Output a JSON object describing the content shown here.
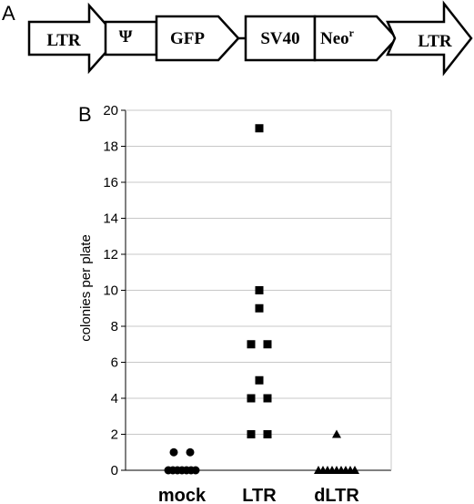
{
  "panel_a": {
    "letter": "A",
    "elements": [
      {
        "id": "ltr-left",
        "label": "LTR",
        "shape": "arrow"
      },
      {
        "id": "psi",
        "label": "Ψ",
        "shape": "box"
      },
      {
        "id": "gfp",
        "label": "GFP",
        "shape": "arrow"
      },
      {
        "id": "sv40",
        "label": "SV40",
        "shape": "box"
      },
      {
        "id": "neo",
        "label": "Neo",
        "sup": "r",
        "shape": "arrow"
      },
      {
        "id": "ltr-right",
        "label": "LTR",
        "shape": "arrow"
      }
    ]
  },
  "panel_b": {
    "letter": "B"
  },
  "chart_data": {
    "type": "scatter",
    "ylabel": "colonies per plate",
    "ylim": [
      0,
      20
    ],
    "yticks": [
      0,
      2,
      4,
      6,
      8,
      10,
      12,
      14,
      16,
      18,
      20
    ],
    "categories": [
      "mock",
      "LTR",
      "dLTR"
    ],
    "grid": true,
    "series": [
      {
        "category": "mock",
        "marker": "circle",
        "values": [
          1,
          1,
          0,
          0,
          0,
          0,
          0,
          0,
          0
        ]
      },
      {
        "category": "LTR",
        "marker": "square",
        "values": [
          19,
          10,
          9,
          7,
          7,
          5,
          4,
          4,
          2,
          2
        ]
      },
      {
        "category": "dLTR",
        "marker": "triangle",
        "values": [
          2,
          0,
          0,
          0,
          0,
          0,
          0,
          0,
          0,
          0
        ]
      }
    ]
  }
}
